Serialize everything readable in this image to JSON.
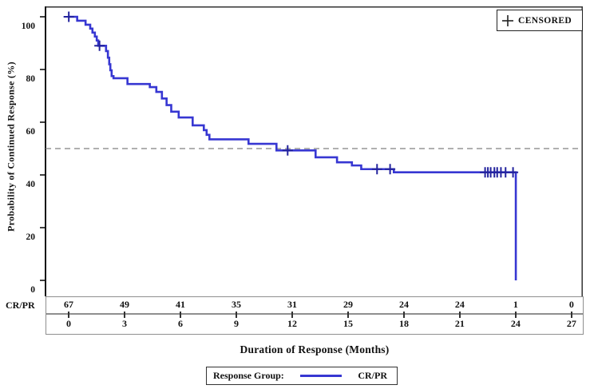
{
  "figure": {
    "censored_legend_label": "CENSORED",
    "risk_row_label": "CR/PR",
    "legend_label": "Response Group:",
    "series_name": "CR/PR",
    "colors": {
      "curve": "#3737d2",
      "censor_mark": "#23239d",
      "reference_line": "#808080",
      "axis": "#111111",
      "table_border": "#8f8f8f"
    }
  },
  "chart_data": {
    "type": "line",
    "subtype": "kaplan-meier-step",
    "title": "",
    "xlabel": "Duration of Response (Months)",
    "ylabel": "Probability of Continued Response (%)",
    "x_ticks": [
      0,
      3,
      6,
      9,
      12,
      15,
      18,
      21,
      24,
      27
    ],
    "y_ticks": [
      0,
      20,
      40,
      60,
      80,
      100
    ],
    "xlim": [
      -1.2,
      27.7
    ],
    "ylim": [
      -6,
      104
    ],
    "grid": false,
    "reference_line_y": 50,
    "legend_position": "top-right",
    "series": [
      {
        "name": "CR/PR",
        "km_steps": [
          [
            0,
            100
          ],
          [
            0.5,
            98.5
          ],
          [
            0.95,
            97
          ],
          [
            1.2,
            95.5
          ],
          [
            1.32,
            94
          ],
          [
            1.45,
            92.5
          ],
          [
            1.55,
            91
          ],
          [
            1.63,
            89
          ],
          [
            2.05,
            87
          ],
          [
            2.15,
            84.5
          ],
          [
            2.22,
            82
          ],
          [
            2.28,
            79.7
          ],
          [
            2.35,
            77.5
          ],
          [
            2.45,
            76.7
          ],
          [
            3.2,
            74.5
          ],
          [
            4.4,
            73.3
          ],
          [
            4.75,
            71.5
          ],
          [
            5.05,
            69
          ],
          [
            5.3,
            66.5
          ],
          [
            5.55,
            64
          ],
          [
            5.95,
            61.8
          ],
          [
            6.7,
            58.8
          ],
          [
            7.3,
            57
          ],
          [
            7.45,
            55.2
          ],
          [
            7.6,
            53.5
          ],
          [
            9.7,
            51.8
          ],
          [
            11.2,
            49.3
          ],
          [
            13.3,
            46.7
          ],
          [
            14.45,
            44.8
          ],
          [
            15.25,
            43.6
          ],
          [
            15.75,
            42.2
          ],
          [
            17.5,
            41.0
          ],
          [
            24.05,
            0
          ]
        ],
        "censor_marks": [
          [
            0.05,
            100
          ],
          [
            1.7,
            89
          ],
          [
            11.8,
            49.3
          ],
          [
            16.6,
            42.2
          ],
          [
            17.3,
            42.2
          ],
          [
            22.4,
            41.0
          ],
          [
            22.55,
            41.0
          ],
          [
            22.7,
            41.0
          ],
          [
            22.9,
            41.0
          ],
          [
            23.05,
            41.0
          ],
          [
            23.25,
            41.0
          ],
          [
            23.5,
            41.0
          ],
          [
            23.9,
            41.0
          ]
        ]
      }
    ],
    "at_risk_table": {
      "row_label": "CR/PR",
      "months": [
        0,
        3,
        6,
        9,
        12,
        15,
        18,
        21,
        24,
        27
      ],
      "values": [
        67,
        49,
        41,
        35,
        31,
        29,
        24,
        24,
        1,
        0
      ]
    }
  }
}
